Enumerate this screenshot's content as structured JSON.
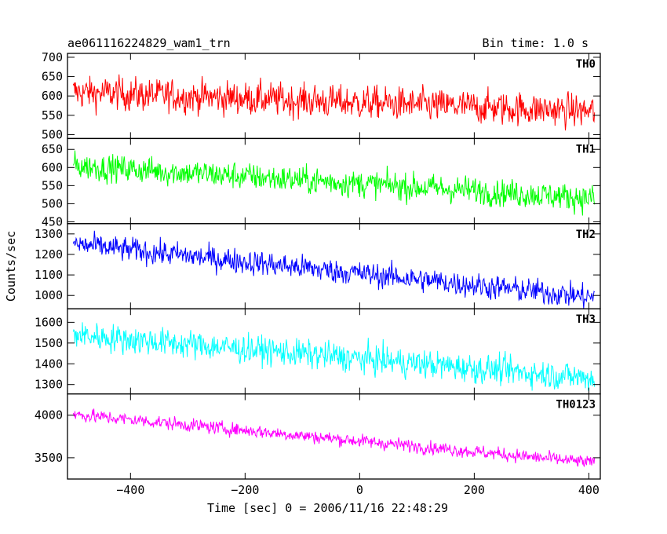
{
  "header": {
    "title": "ae061116224829_wam1_trn",
    "bin_time": "Bin time: 1.0 s"
  },
  "chart_data": {
    "type": "line",
    "xlabel": "Time [sec] 0 = 2006/11/16 22:48:29",
    "ylabel": "Counts/sec",
    "xlim": [
      -510,
      420
    ],
    "x_ticks": [
      -400,
      -200,
      0,
      200,
      400
    ],
    "x_tick_labels": [
      "−400",
      "−200",
      "0",
      "200",
      "400"
    ],
    "data_x_range": [
      -500,
      410
    ],
    "series": [
      {
        "name": "TH0",
        "color": "#ff0000",
        "ylim": [
          490,
          710
        ],
        "y_ticks": [
          500,
          550,
          600,
          650,
          700
        ],
        "y_tick_labels": [
          "500",
          "550",
          "600",
          "650",
          "700"
        ],
        "trend_start": 610,
        "trend_end": 560,
        "noise": 25
      },
      {
        "name": "TH1",
        "color": "#00ff00",
        "ylim": [
          445,
          680
        ],
        "y_ticks": [
          450,
          500,
          550,
          600,
          650
        ],
        "y_tick_labels": [
          "450",
          "500",
          "550",
          "600",
          "650"
        ],
        "trend_start": 605,
        "trend_end": 515,
        "noise": 22
      },
      {
        "name": "TH2",
        "color": "#0000ff",
        "ylim": [
          935,
          1350
        ],
        "y_ticks": [
          1000,
          1100,
          1200,
          1300
        ],
        "y_tick_labels": [
          "1000",
          "1100",
          "1200",
          "1300"
        ],
        "trend_start": 1250,
        "trend_end": 990,
        "noise": 35
      },
      {
        "name": "TH3",
        "color": "#00ffff",
        "ylim": [
          1255,
          1665
        ],
        "y_ticks": [
          1300,
          1400,
          1500,
          1600
        ],
        "y_tick_labels": [
          "1300",
          "1400",
          "1500",
          "1600"
        ],
        "trend_start": 1540,
        "trend_end": 1330,
        "noise": 40
      },
      {
        "name": "TH0123",
        "color": "#ff00ff",
        "ylim": [
          3250,
          4250
        ],
        "y_ticks": [
          3500,
          4000
        ],
        "y_tick_labels": [
          "3500",
          "4000"
        ],
        "trend_start": 4010,
        "trend_end": 3440,
        "noise": 45
      }
    ]
  }
}
